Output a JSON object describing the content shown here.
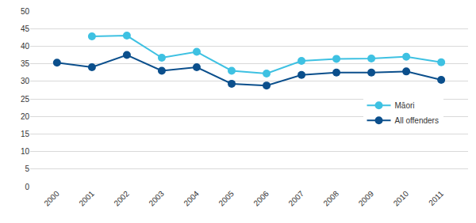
{
  "chart_data": {
    "type": "line",
    "categories": [
      "2000",
      "2001",
      "2002",
      "2003",
      "2004",
      "2005",
      "2006",
      "2007",
      "2008",
      "2009",
      "2010",
      "2011"
    ],
    "series": [
      {
        "name": "Māori",
        "color": "#3ec1e2",
        "marker": "circle",
        "values": [
          null,
          42.8,
          43.0,
          36.7,
          38.4,
          33.0,
          32.2,
          35.8,
          36.4,
          36.5,
          37.0,
          35.4
        ]
      },
      {
        "name": "All offenders",
        "color": "#0b4f8c",
        "marker": "circle",
        "values": [
          35.3,
          34.0,
          37.5,
          33.0,
          34.0,
          29.3,
          28.8,
          31.8,
          32.5,
          32.5,
          32.8,
          30.4
        ]
      }
    ],
    "ylim": [
      0,
      50
    ],
    "yticks": [
      0,
      5,
      10,
      15,
      20,
      25,
      30,
      35,
      40,
      45,
      50
    ],
    "grid": true,
    "legend": "right"
  }
}
